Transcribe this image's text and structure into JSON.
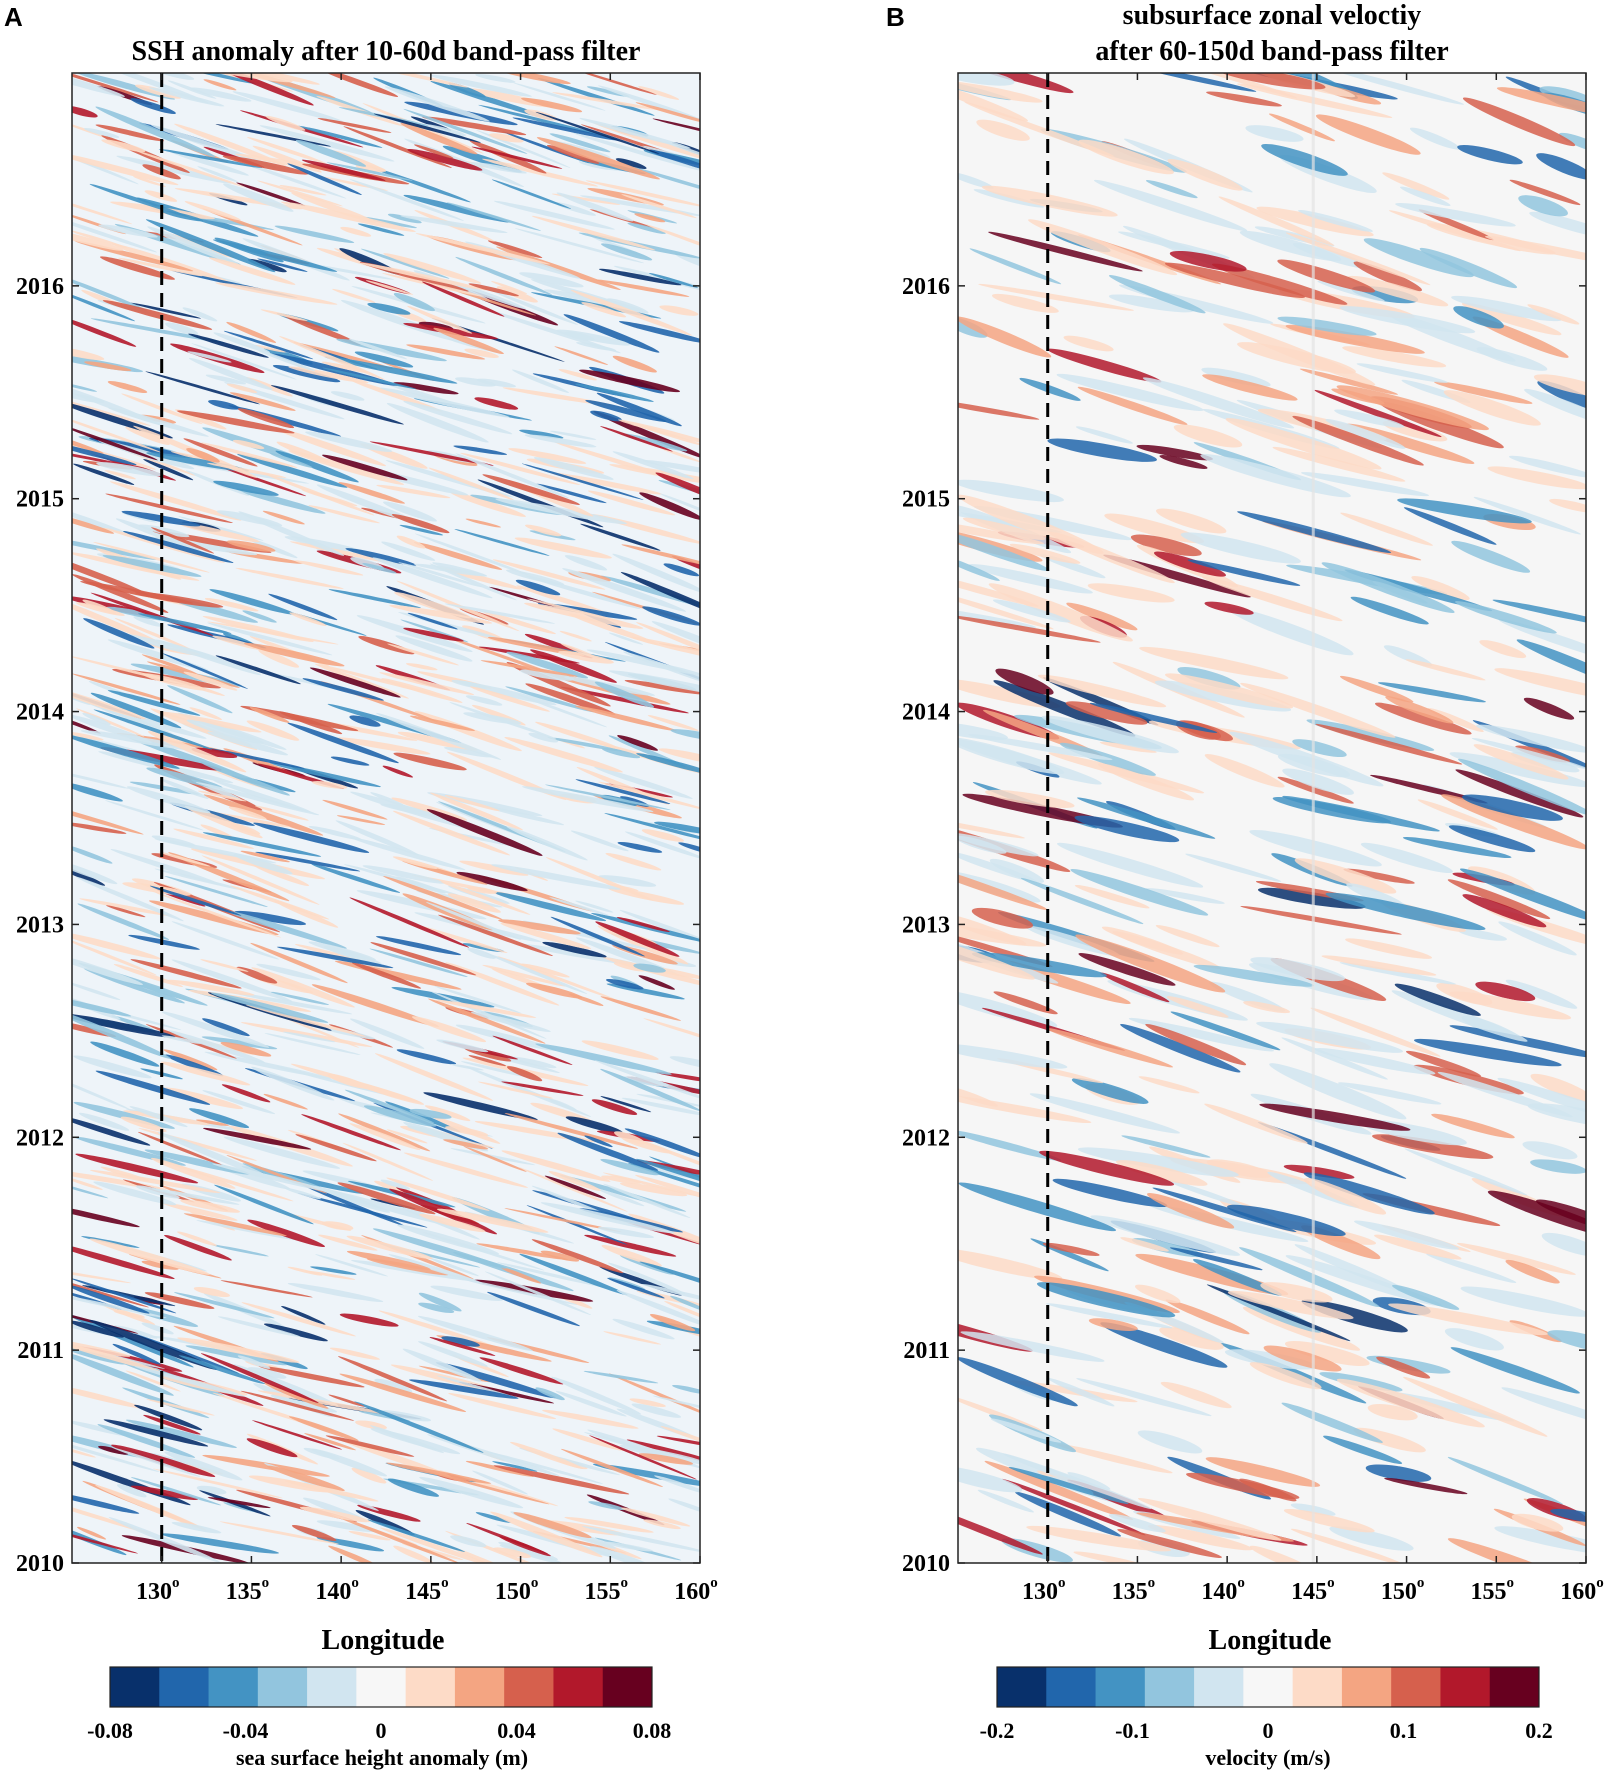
{
  "chart_data": [
    {
      "panel": "A",
      "type": "heatmap",
      "title": "SSH anomaly after 10-60d band-pass filter",
      "xlabel": "Longitude",
      "ylabel": "",
      "x_ticks": [
        "130",
        "135",
        "140",
        "145",
        "150",
        "155",
        "160"
      ],
      "x_tick_unit": "o",
      "xlim": [
        125,
        160
      ],
      "y_ticks": [
        "2010",
        "2011",
        "2012",
        "2013",
        "2014",
        "2015",
        "2016"
      ],
      "ylim": [
        2010,
        2017
      ],
      "reference_line_lon": 130,
      "colorbar": {
        "label": "sea surface height anomaly (m)",
        "ticks": [
          "-0.08",
          "-0.04",
          "0",
          "0.04",
          "0.08"
        ],
        "range": [
          -0.08,
          0.08
        ],
        "colors": [
          "#08306b",
          "#2166ac",
          "#4393c3",
          "#92c5de",
          "#d1e5f0",
          "#f7f7f7",
          "#fddbc7",
          "#f4a582",
          "#d6604d",
          "#b2182b",
          "#67001f"
        ]
      },
      "grid": false
    },
    {
      "panel": "B",
      "type": "heatmap",
      "title_line1": "subsurface zonal veloctiy",
      "title_line2": "after 60-150d band-pass filter",
      "xlabel": "Longitude",
      "ylabel": "",
      "x_ticks": [
        "130",
        "135",
        "140",
        "145",
        "150",
        "155",
        "160"
      ],
      "x_tick_unit": "o",
      "xlim": [
        125,
        160
      ],
      "y_ticks": [
        "2010",
        "2011",
        "2012",
        "2013",
        "2014",
        "2015",
        "2016"
      ],
      "ylim": [
        2010,
        2017
      ],
      "reference_line_lon": 130,
      "colorbar": {
        "label": "velocity (m/s)",
        "ticks": [
          "-0.2",
          "-0.1",
          "0",
          "0.1",
          "0.2"
        ],
        "range": [
          -0.2,
          0.2
        ],
        "colors": [
          "#08306b",
          "#2166ac",
          "#4393c3",
          "#92c5de",
          "#d1e5f0",
          "#f7f7f7",
          "#fddbc7",
          "#f4a582",
          "#d6604d",
          "#b2182b",
          "#67001f"
        ]
      },
      "grid": false
    }
  ]
}
